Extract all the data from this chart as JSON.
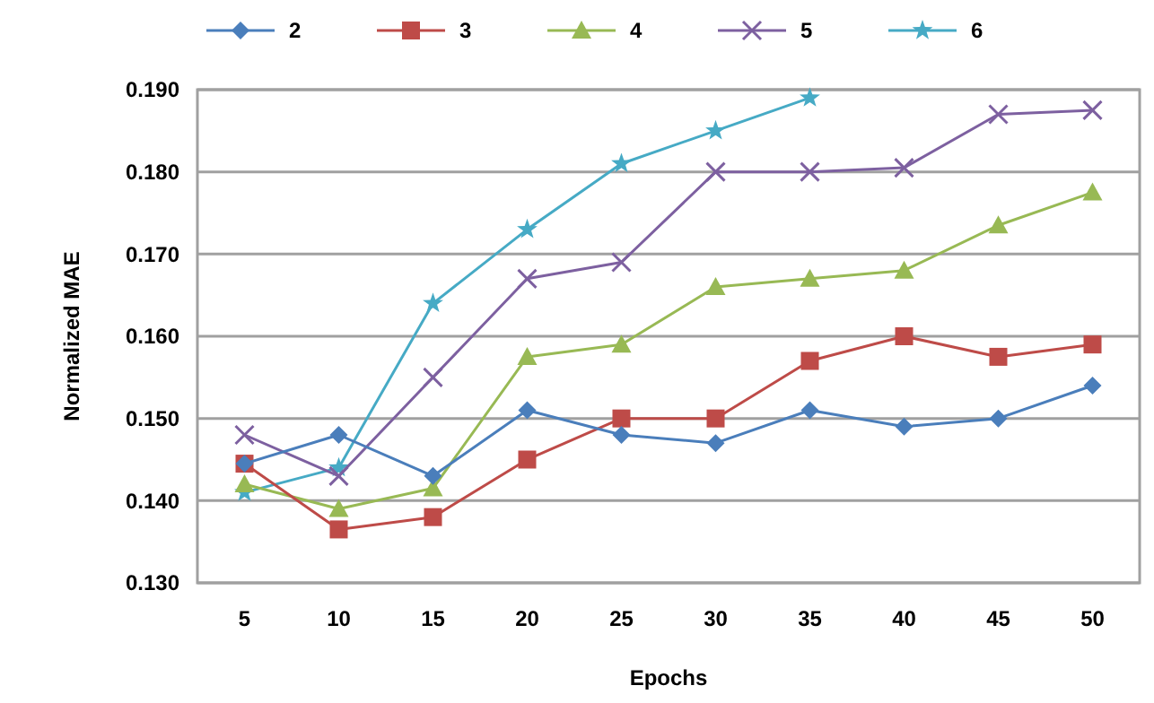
{
  "chart_data": {
    "type": "line",
    "xlabel": "Epochs",
    "ylabel": "Normalized MAE",
    "categories": [
      "5",
      "10",
      "15",
      "20",
      "25",
      "30",
      "35",
      "40",
      "45",
      "50"
    ],
    "ylim": [
      0.13,
      0.19
    ],
    "yticks": [
      {
        "value": 0.13,
        "label": "0.130"
      },
      {
        "value": 0.14,
        "label": "0.140"
      },
      {
        "value": 0.15,
        "label": "0.150"
      },
      {
        "value": 0.16,
        "label": "0.160"
      },
      {
        "value": 0.17,
        "label": "0.170"
      },
      {
        "value": 0.18,
        "label": "0.180"
      },
      {
        "value": 0.19,
        "label": "0.190"
      }
    ],
    "grid": "y",
    "legend": "top",
    "series": [
      {
        "name": "2",
        "color": "#4a7ebb",
        "marker": "diamond",
        "values": [
          0.1445,
          0.148,
          0.143,
          0.151,
          0.148,
          0.147,
          0.151,
          0.149,
          0.15,
          0.154
        ]
      },
      {
        "name": "3",
        "color": "#be4b48",
        "marker": "square",
        "values": [
          0.1445,
          0.1365,
          0.138,
          0.145,
          0.15,
          0.15,
          0.157,
          0.16,
          0.1575,
          0.159
        ]
      },
      {
        "name": "4",
        "color": "#98b954",
        "marker": "triangle",
        "values": [
          0.142,
          0.139,
          0.1415,
          0.1575,
          0.159,
          0.166,
          0.167,
          0.168,
          0.1735,
          0.1775
        ]
      },
      {
        "name": "5",
        "color": "#7d60a0",
        "marker": "cross",
        "values": [
          0.148,
          0.143,
          0.155,
          0.167,
          0.169,
          0.18,
          0.18,
          0.1805,
          0.187,
          0.1875
        ]
      },
      {
        "name": "6",
        "color": "#46aac5",
        "marker": "star",
        "values": [
          0.141,
          0.144,
          0.164,
          0.173,
          0.181,
          0.185,
          0.189,
          null,
          null,
          null
        ]
      }
    ]
  }
}
